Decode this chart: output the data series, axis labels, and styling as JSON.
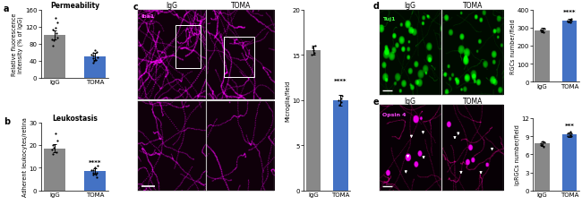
{
  "panel_a": {
    "title": "Permeability",
    "ylabel": "Relative fluorescence\nintensity (% of IgG)",
    "ylim": [
      0,
      160
    ],
    "yticks": [
      0,
      40,
      80,
      120,
      160
    ],
    "bar_labels": [
      "IgG",
      "TOMA"
    ],
    "bar_means": [
      100,
      50
    ],
    "bar_errors": [
      10,
      8
    ],
    "bar_colors": [
      "#888888",
      "#4472C4"
    ],
    "scatter_IgG": [
      88,
      95,
      105,
      118,
      75,
      112,
      90,
      130,
      140
    ],
    "scatter_TOMA": [
      42,
      55,
      48,
      60,
      35,
      52,
      58,
      45,
      65,
      40
    ],
    "significance": ""
  },
  "panel_b": {
    "title": "Leukostasis",
    "ylabel": "Adherent leukocytes/retina",
    "ylim": [
      0,
      30
    ],
    "yticks": [
      0,
      10,
      20,
      30
    ],
    "bar_labels": [
      "IgG",
      "TOMA"
    ],
    "bar_means": [
      18.5,
      8.5
    ],
    "bar_errors": [
      1.8,
      1.2
    ],
    "bar_colors": [
      "#888888",
      "#4472C4"
    ],
    "scatter_IgG": [
      19,
      22,
      17,
      25,
      16,
      20,
      18
    ],
    "scatter_TOMA": [
      8,
      10,
      7,
      9,
      11,
      6,
      8,
      9,
      7
    ],
    "significance": "****"
  },
  "panel_c_bar": {
    "ylabel": "Microglia/field",
    "ylim": [
      0,
      20
    ],
    "yticks": [
      0,
      5,
      10,
      15,
      20
    ],
    "bar_labels": [
      "IgG",
      "TOMA"
    ],
    "bar_means": [
      15.5,
      10.0
    ],
    "bar_errors": [
      0.5,
      0.6
    ],
    "bar_colors": [
      "#888888",
      "#4472C4"
    ],
    "scatter_IgG": [
      15.8,
      16.0,
      15.2,
      15.5,
      15.0
    ],
    "scatter_TOMA": [
      9.5,
      10.0,
      10.5,
      9.8,
      10.2
    ],
    "significance": "****"
  },
  "panel_d_bar": {
    "ylabel": "RGCs number/field",
    "ylim": [
      0,
      400
    ],
    "yticks": [
      0,
      100,
      200,
      300,
      400
    ],
    "bar_labels": [
      "IgG",
      "TOMA"
    ],
    "bar_means": [
      285,
      340
    ],
    "bar_errors": [
      12,
      10
    ],
    "bar_colors": [
      "#888888",
      "#4472C4"
    ],
    "scatter_IgG": [
      280,
      295,
      275,
      285,
      290,
      282
    ],
    "scatter_TOMA": [
      335,
      350,
      330,
      345,
      340,
      338
    ],
    "significance": "****"
  },
  "panel_e_bar": {
    "ylabel": "ipRGCs number/field",
    "ylim": [
      0,
      12
    ],
    "yticks": [
      0,
      3,
      6,
      9,
      12
    ],
    "bar_labels": [
      "IgG",
      "TOMA"
    ],
    "bar_means": [
      7.8,
      9.3
    ],
    "bar_errors": [
      0.4,
      0.35
    ],
    "bar_colors": [
      "#888888",
      "#4472C4"
    ],
    "scatter_IgG": [
      7.5,
      8.0,
      7.2,
      8.1,
      7.8,
      7.6
    ],
    "scatter_TOMA": [
      9.0,
      9.5,
      9.8,
      9.2,
      9.4,
      9.1
    ],
    "significance": "***"
  },
  "iba1_label": "Iba1",
  "tuj1_label": "Tuj1",
  "opsin4_label": "Opsin 4",
  "IgG_label": "IgG",
  "TOMA_label": "TOMA"
}
